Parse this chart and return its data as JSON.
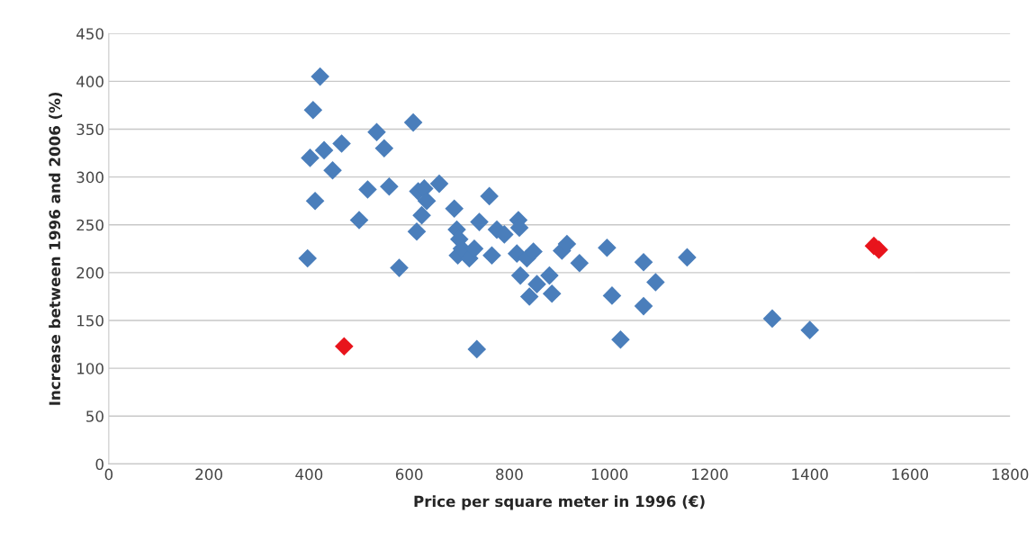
{
  "chart_data": {
    "type": "scatter",
    "xlabel": "Price per square meter in 1996 (€)",
    "ylabel": "Increase between 1996 and 2006 (%)",
    "xlim": [
      0,
      1800
    ],
    "xticks": [
      0,
      200,
      400,
      600,
      800,
      1000,
      1200,
      1400,
      1600,
      1800
    ],
    "ylim": [
      0,
      450
    ],
    "yticks": [
      0,
      50,
      100,
      150,
      200,
      250,
      300,
      350,
      400,
      450
    ],
    "grid": "y",
    "marker": "diamond",
    "series": [
      {
        "color": "#4a7ebb",
        "x": [
          397,
          402,
          408,
          412,
          422,
          430,
          447,
          465,
          500,
          517,
          535,
          550,
          560,
          580,
          608,
          615,
          618,
          625,
          630,
          635,
          660,
          690,
          695,
          697,
          700,
          705,
          720,
          730,
          735,
          740,
          760,
          765,
          775,
          790,
          815,
          818,
          820,
          822,
          835,
          840,
          848,
          855,
          880,
          885,
          905,
          915,
          940,
          995,
          1005,
          1022,
          1068,
          1068,
          1092,
          1155,
          1325,
          1400
        ],
        "values": [
          215,
          320,
          370,
          275,
          405,
          328,
          307,
          335,
          255,
          287,
          347,
          330,
          290,
          205,
          357,
          243,
          285,
          260,
          288,
          275,
          293,
          267,
          245,
          218,
          235,
          225,
          215,
          225,
          120,
          253,
          280,
          218,
          245,
          240,
          220,
          255,
          247,
          197,
          215,
          175,
          222,
          188,
          197,
          178,
          223,
          230,
          210,
          226,
          176,
          130,
          211,
          165,
          190,
          216,
          152,
          140
        ]
      },
      {
        "color": "#e8141c",
        "x": [
          470,
          1528,
          1538
        ],
        "values": [
          123,
          228,
          224
        ]
      }
    ]
  }
}
